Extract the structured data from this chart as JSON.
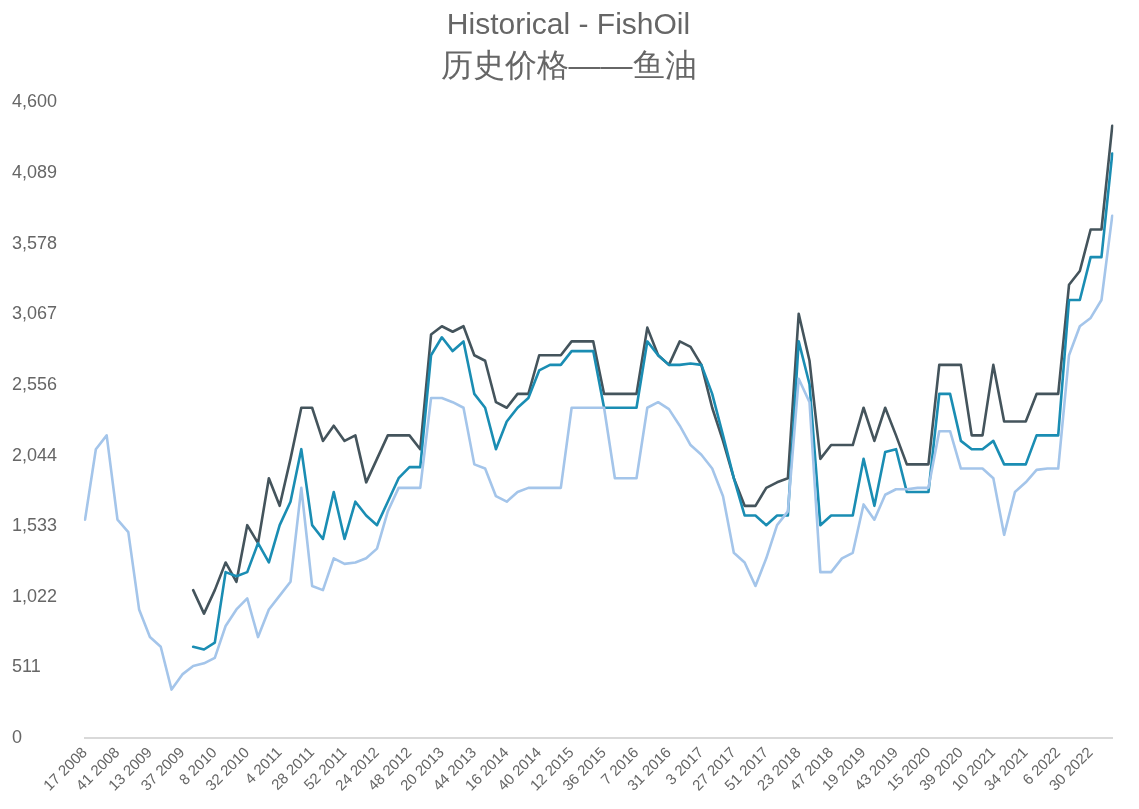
{
  "chart_data": {
    "type": "line",
    "title": "Historical - FishOil",
    "subtitle": "历史价格——鱼油",
    "categories": [
      "17 2008",
      null,
      null,
      "41 2008",
      null,
      null,
      "13 2009",
      null,
      null,
      "37 2009",
      null,
      null,
      "8 2010",
      null,
      null,
      "32 2010",
      null,
      null,
      "4 2011",
      null,
      null,
      "28 2011",
      null,
      null,
      "52 2011",
      null,
      null,
      "24 2012",
      null,
      null,
      "48 2012",
      null,
      null,
      "20 2013",
      null,
      null,
      "44 2013",
      null,
      null,
      "16 2014",
      null,
      null,
      "40 2014",
      null,
      null,
      "12 2015",
      null,
      null,
      "36 2015",
      null,
      null,
      "7 2016",
      null,
      null,
      "31 2016",
      null,
      null,
      "3 2017",
      null,
      null,
      "27 2017",
      null,
      null,
      "51 2017",
      null,
      null,
      "23 2018",
      null,
      null,
      "47 2018",
      null,
      null,
      "19 2019",
      null,
      null,
      "43 2019",
      null,
      null,
      "15 2020",
      null,
      null,
      "39 2020",
      null,
      null,
      "10 2021",
      null,
      null,
      "34 2021",
      null,
      null,
      "6 2022",
      null,
      null,
      "30 2022",
      null,
      null
    ],
    "series": [
      {
        "color": "#a4c5ea",
        "values": [
          1580,
          2090,
          2190,
          1580,
          1490,
          930,
          730,
          660,
          350,
          460,
          520,
          540,
          580,
          810,
          930,
          1010,
          730,
          930,
          1030,
          1130,
          1810,
          1100,
          1070,
          1300,
          1260,
          1270,
          1300,
          1370,
          1640,
          1810,
          1810,
          1810,
          2460,
          2460,
          2430,
          2390,
          1980,
          1950,
          1750,
          1710,
          1780,
          1810,
          1810,
          1810,
          1810,
          2390,
          2390,
          2390,
          2390,
          1880,
          1880,
          1880,
          2390,
          2430,
          2380,
          2260,
          2120,
          2050,
          1950,
          1750,
          1340,
          1270,
          1100,
          1300,
          1540,
          1640,
          2600,
          2430,
          1200,
          1200,
          1300,
          1340,
          1690,
          1580,
          1760,
          1800,
          1800,
          1810,
          1810,
          2220,
          2220,
          1950,
          1950,
          1950,
          1880,
          1470,
          1780,
          1850,
          1940,
          1950,
          1950,
          2770,
          2980,
          3040,
          3170,
          3780
        ]
      },
      {
        "color": "#1a8db3",
        "values": [
          null,
          null,
          null,
          null,
          null,
          null,
          null,
          null,
          null,
          null,
          660,
          640,
          690,
          1200,
          1170,
          1200,
          1410,
          1270,
          1540,
          1710,
          2090,
          1540,
          1440,
          1780,
          1440,
          1710,
          1610,
          1540,
          1710,
          1880,
          1960,
          1960,
          2770,
          2900,
          2800,
          2870,
          2490,
          2390,
          2090,
          2290,
          2390,
          2460,
          2660,
          2700,
          2700,
          2800,
          2800,
          2800,
          2390,
          2390,
          2390,
          2390,
          2870,
          2770,
          2700,
          2700,
          2710,
          2700,
          2490,
          2190,
          1880,
          1610,
          1610,
          1540,
          1610,
          1610,
          2870,
          2560,
          1540,
          1610,
          1610,
          1610,
          2020,
          1680,
          2070,
          2090,
          1780,
          1780,
          1780,
          2490,
          2490,
          2150,
          2090,
          2090,
          2150,
          1980,
          1980,
          1980,
          2190,
          2190,
          2190,
          3170,
          3170,
          3480,
          3480,
          4230
        ]
      },
      {
        "color": "#44545c",
        "values": [
          null,
          null,
          null,
          null,
          null,
          null,
          null,
          null,
          null,
          null,
          1070,
          900,
          1070,
          1270,
          1130,
          1540,
          1410,
          1880,
          1680,
          2020,
          2390,
          2390,
          2150,
          2260,
          2150,
          2190,
          1850,
          2020,
          2190,
          2190,
          2190,
          2090,
          2920,
          2980,
          2940,
          2980,
          2770,
          2730,
          2430,
          2390,
          2490,
          2490,
          2770,
          2770,
          2770,
          2870,
          2870,
          2870,
          2490,
          2490,
          2490,
          2490,
          2970,
          2770,
          2700,
          2870,
          2830,
          2700,
          2390,
          2150,
          1880,
          1680,
          1680,
          1810,
          1850,
          1880,
          3070,
          2730,
          2020,
          2120,
          2120,
          2120,
          2390,
          2150,
          2390,
          2190,
          1980,
          1980,
          1980,
          2700,
          2700,
          2700,
          2190,
          2190,
          2700,
          2290,
          2290,
          2290,
          2490,
          2490,
          2490,
          3280,
          3380,
          3680,
          3680,
          4430
        ]
      }
    ],
    "ylim": [
      0,
      4600
    ],
    "yticks": [
      0,
      511,
      {
        "value": 1022,
        "label": "1,022"
      },
      {
        "value": 1533,
        "label": "1,533"
      },
      {
        "value": 2044,
        "label": "2,044"
      },
      {
        "value": 2556,
        "label": "2,556"
      },
      {
        "value": 3067,
        "label": "3,067"
      },
      {
        "value": 3578,
        "label": "3,578"
      },
      {
        "value": 4089,
        "label": "4,089"
      },
      {
        "value": 4600,
        "label": "4,600"
      }
    ],
    "grid": false,
    "legend": false,
    "marker": "none",
    "line_style": "solid"
  }
}
